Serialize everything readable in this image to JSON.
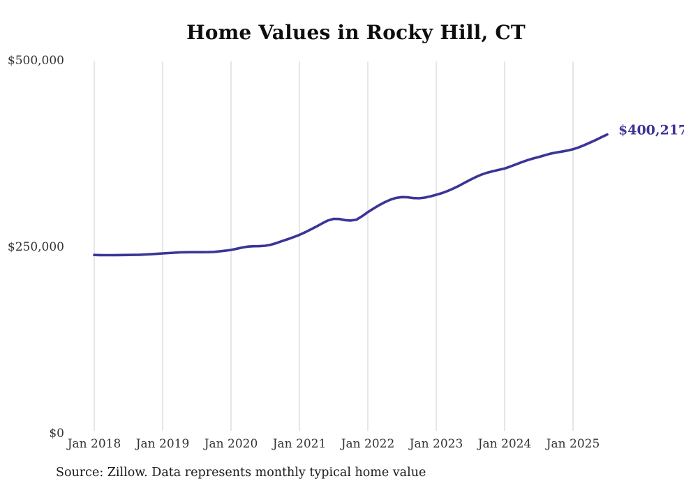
{
  "chart_data": {
    "type": "line",
    "title": "Home Values in Rocky Hill, CT",
    "xlabel": "",
    "ylabel": "",
    "x_frequency": "monthly",
    "x_range": [
      "Jan 2018",
      "Jul 2025"
    ],
    "x_tick_labels": [
      "Jan 2018",
      "Jan 2019",
      "Jan 2020",
      "Jan 2021",
      "Jan 2022",
      "Jan 2023",
      "Jan 2024",
      "Jan 2025"
    ],
    "y_ticks": [
      0,
      250000,
      500000
    ],
    "y_tick_labels": [
      "$0",
      "$250,000",
      "$500,000"
    ],
    "ylim": [
      0,
      500000
    ],
    "grid": "vertical-only",
    "legend": "none",
    "line_color": "#3b3597",
    "grid_color": "#cccccc",
    "end_label": "$400,217",
    "final_value": 400217,
    "series": [
      {
        "name": "Typical home value",
        "start": "2018-01",
        "values": [
          238600,
          238400,
          238300,
          238300,
          238400,
          238500,
          238600,
          238700,
          238900,
          239200,
          239600,
          240100,
          240600,
          241100,
          241600,
          242000,
          242200,
          242300,
          242300,
          242300,
          242400,
          242700,
          243400,
          244300,
          245300,
          246900,
          248600,
          249800,
          250300,
          250400,
          250900,
          252300,
          254600,
          257300,
          259800,
          262500,
          265500,
          269000,
          272800,
          276800,
          281000,
          284800,
          287000,
          286800,
          285300,
          284700,
          285900,
          290500,
          296000,
          300800,
          305400,
          309500,
          312800,
          315200,
          316200,
          315900,
          314900,
          314600,
          315500,
          317200,
          319300,
          321500,
          324300,
          327700,
          331400,
          335500,
          339500,
          343300,
          346500,
          349100,
          351000,
          352700,
          354500,
          357200,
          360100,
          363000,
          365700,
          368000,
          369900,
          372200,
          374300,
          375900,
          377200,
          378600,
          380300,
          382900,
          386000,
          389300,
          392800,
          396500,
          400217
        ]
      }
    ],
    "source_note": "Source: Zillow. Data represents monthly typical home value"
  }
}
